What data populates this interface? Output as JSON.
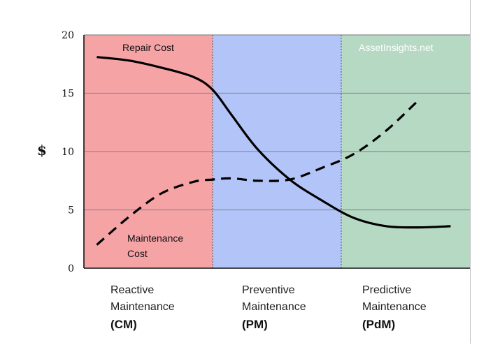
{
  "chart_data": {
    "type": "line",
    "title": "",
    "ylabel": "$",
    "xlabel": "",
    "ylim": [
      0,
      20
    ],
    "yticks": [
      0,
      5,
      10,
      15,
      20
    ],
    "grid": true,
    "watermark": "AssetInsights.net",
    "regions": [
      {
        "name": "Reactive Maintenance",
        "abbr": "(CM)",
        "line1": "Reactive",
        "line2": "Maintenance",
        "color": "#f6a3a6"
      },
      {
        "name": "Preventive Maintenance",
        "abbr": "(PM)",
        "line1": "Preventive",
        "line2": "Maintenance",
        "color": "#b3c5f8"
      },
      {
        "name": "Predictive Maintenance",
        "abbr": "(PdM)",
        "line1": "Predictive",
        "line2": "Maintenance",
        "color": "#b6d9c4"
      }
    ],
    "x": [
      0.1,
      0.35,
      0.6,
      0.85,
      1.0,
      1.15,
      1.35,
      1.6,
      1.85,
      2.1,
      2.35,
      2.6,
      2.85
    ],
    "series": [
      {
        "name": "Repair Cost",
        "label_line1": "Repair Cost",
        "style": "solid",
        "color": "#000000",
        "values": [
          18.1,
          17.8,
          17.2,
          16.4,
          15.3,
          13.1,
          10.2,
          7.6,
          5.8,
          4.3,
          3.6,
          3.5,
          3.6
        ]
      },
      {
        "name": "Maintenance Cost",
        "label_line1": "Maintenance",
        "label_line2": "Cost",
        "style": "dashed",
        "color": "#000000",
        "values": [
          2.0,
          4.4,
          6.4,
          7.4,
          7.6,
          7.7,
          7.5,
          7.6,
          8.6,
          9.8,
          11.8,
          14.4,
          null
        ]
      }
    ]
  }
}
